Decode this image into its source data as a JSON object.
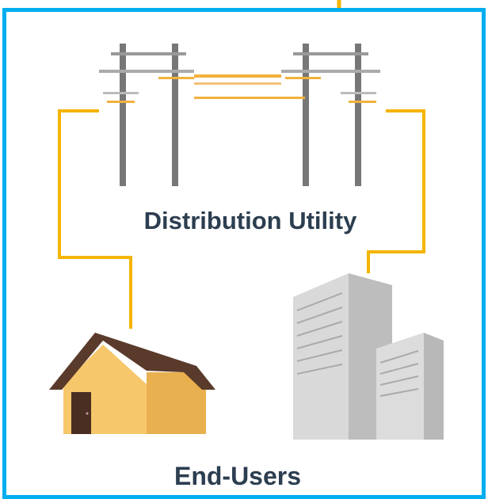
{
  "diagram": {
    "utility_label": "Distribution Utility",
    "end_users_label": "End-Users"
  }
}
